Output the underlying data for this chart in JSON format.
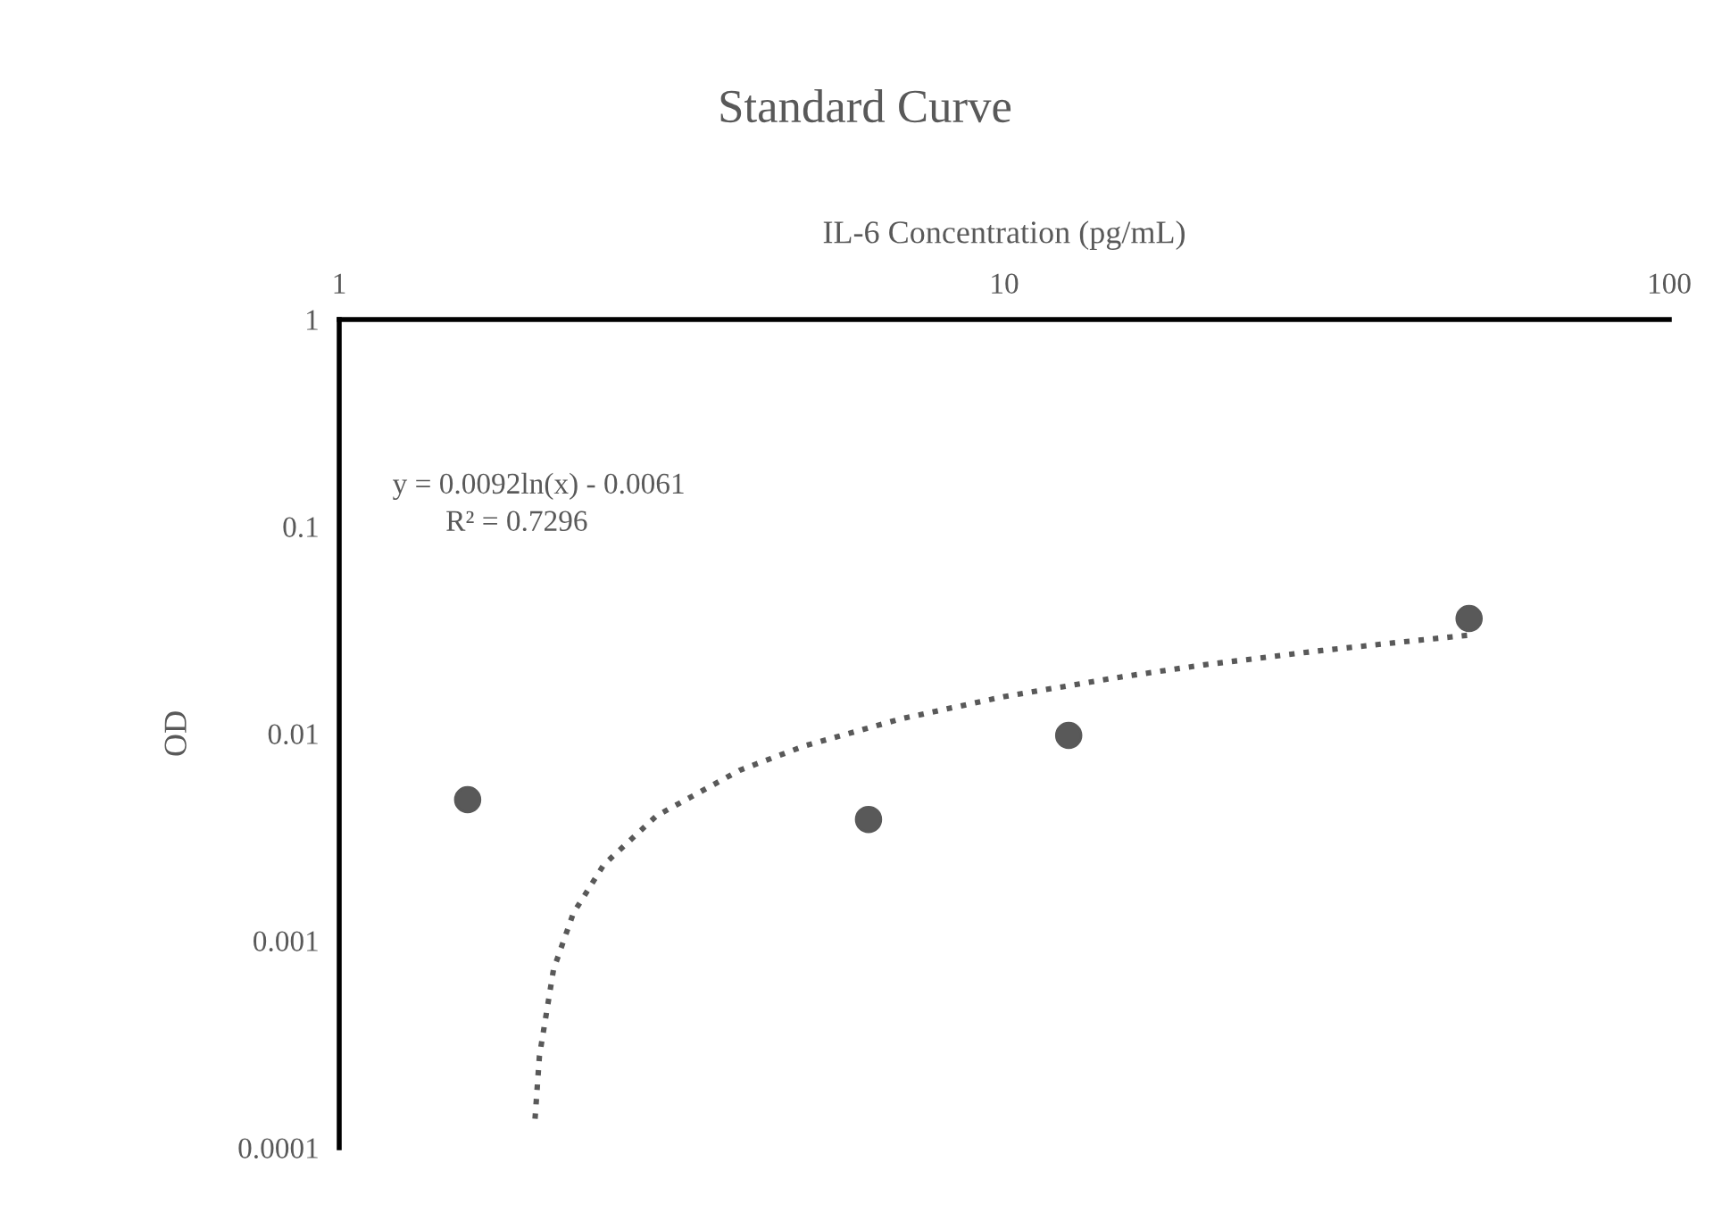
{
  "chart_data": {
    "type": "scatter",
    "title": "Standard Curve",
    "xlabel": "IL-6 Concentration (pg/mL)",
    "ylabel": "OD",
    "log": "xy",
    "xlim": [
      1,
      100
    ],
    "xticks": [
      1,
      10,
      100
    ],
    "ylim": [
      0.0001,
      1
    ],
    "yticks": [
      0.0001,
      0.001,
      0.01,
      0.1,
      1
    ],
    "grid": false,
    "legend": false,
    "marker": "circle",
    "annotations": [
      "y = 0.0092ln(x) - 0.0061",
      "R² = 0.7296"
    ],
    "series": [
      {
        "color": "#595959",
        "x": [
          1.56,
          6.25,
          12.5,
          50
        ],
        "values": [
          0.0048,
          0.00385,
          0.0098,
          0.036
        ]
      },
      {
        "type": "line",
        "color": "#595959",
        "line_style": "dotted",
        "marker": "none",
        "x": [
          1.97,
          2.0,
          2.1,
          2.25,
          2.5,
          3,
          4,
          5,
          7,
          10,
          15,
          20,
          30,
          40,
          50
        ],
        "values": [
          0.000138,
          0.000277,
          0.000726,
          0.00136,
          0.00233,
          0.00401,
          0.00665,
          0.00871,
          0.0118,
          0.0151,
          0.0188,
          0.0215,
          0.0252,
          0.0278,
          0.0299
        ]
      }
    ]
  }
}
